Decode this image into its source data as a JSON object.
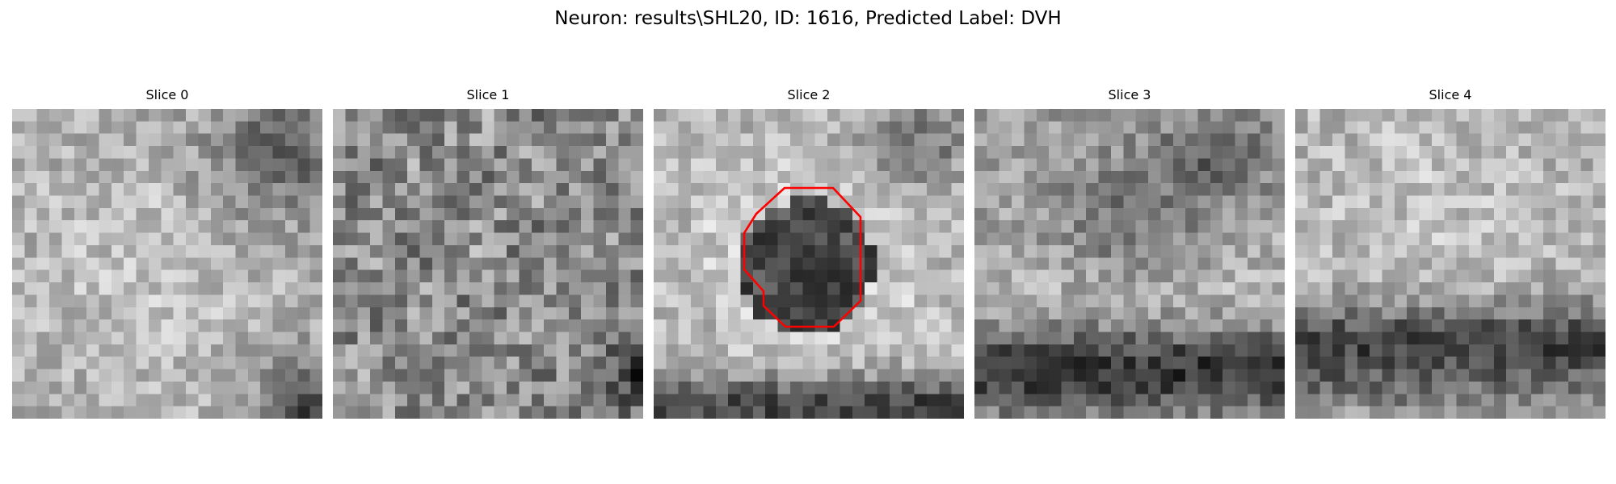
{
  "figure": {
    "title": "Neuron: results\\SHL20, ID: 1616, Predicted Label: DVH"
  },
  "slices": [
    {
      "title": "Slice 0",
      "pattern": "bright-left-fading-dark-top-right-and-bottom-right-corners"
    },
    {
      "title": "Slice 1",
      "pattern": "uniform-mid-gray-noise-with-dark-bottom-right-corner"
    },
    {
      "title": "Slice 2",
      "pattern": "dark-center-cell-bright-ring-dark-bottom-band"
    },
    {
      "title": "Slice 3",
      "pattern": "textured-light-top-dark-bottom-band"
    },
    {
      "title": "Slice 4",
      "pattern": "light-noisy-top-dark-bottom-band"
    }
  ],
  "overlay": {
    "slice_index": 2,
    "shape": "octagon-outline",
    "color": "#ff0000"
  },
  "colormap": "gray"
}
